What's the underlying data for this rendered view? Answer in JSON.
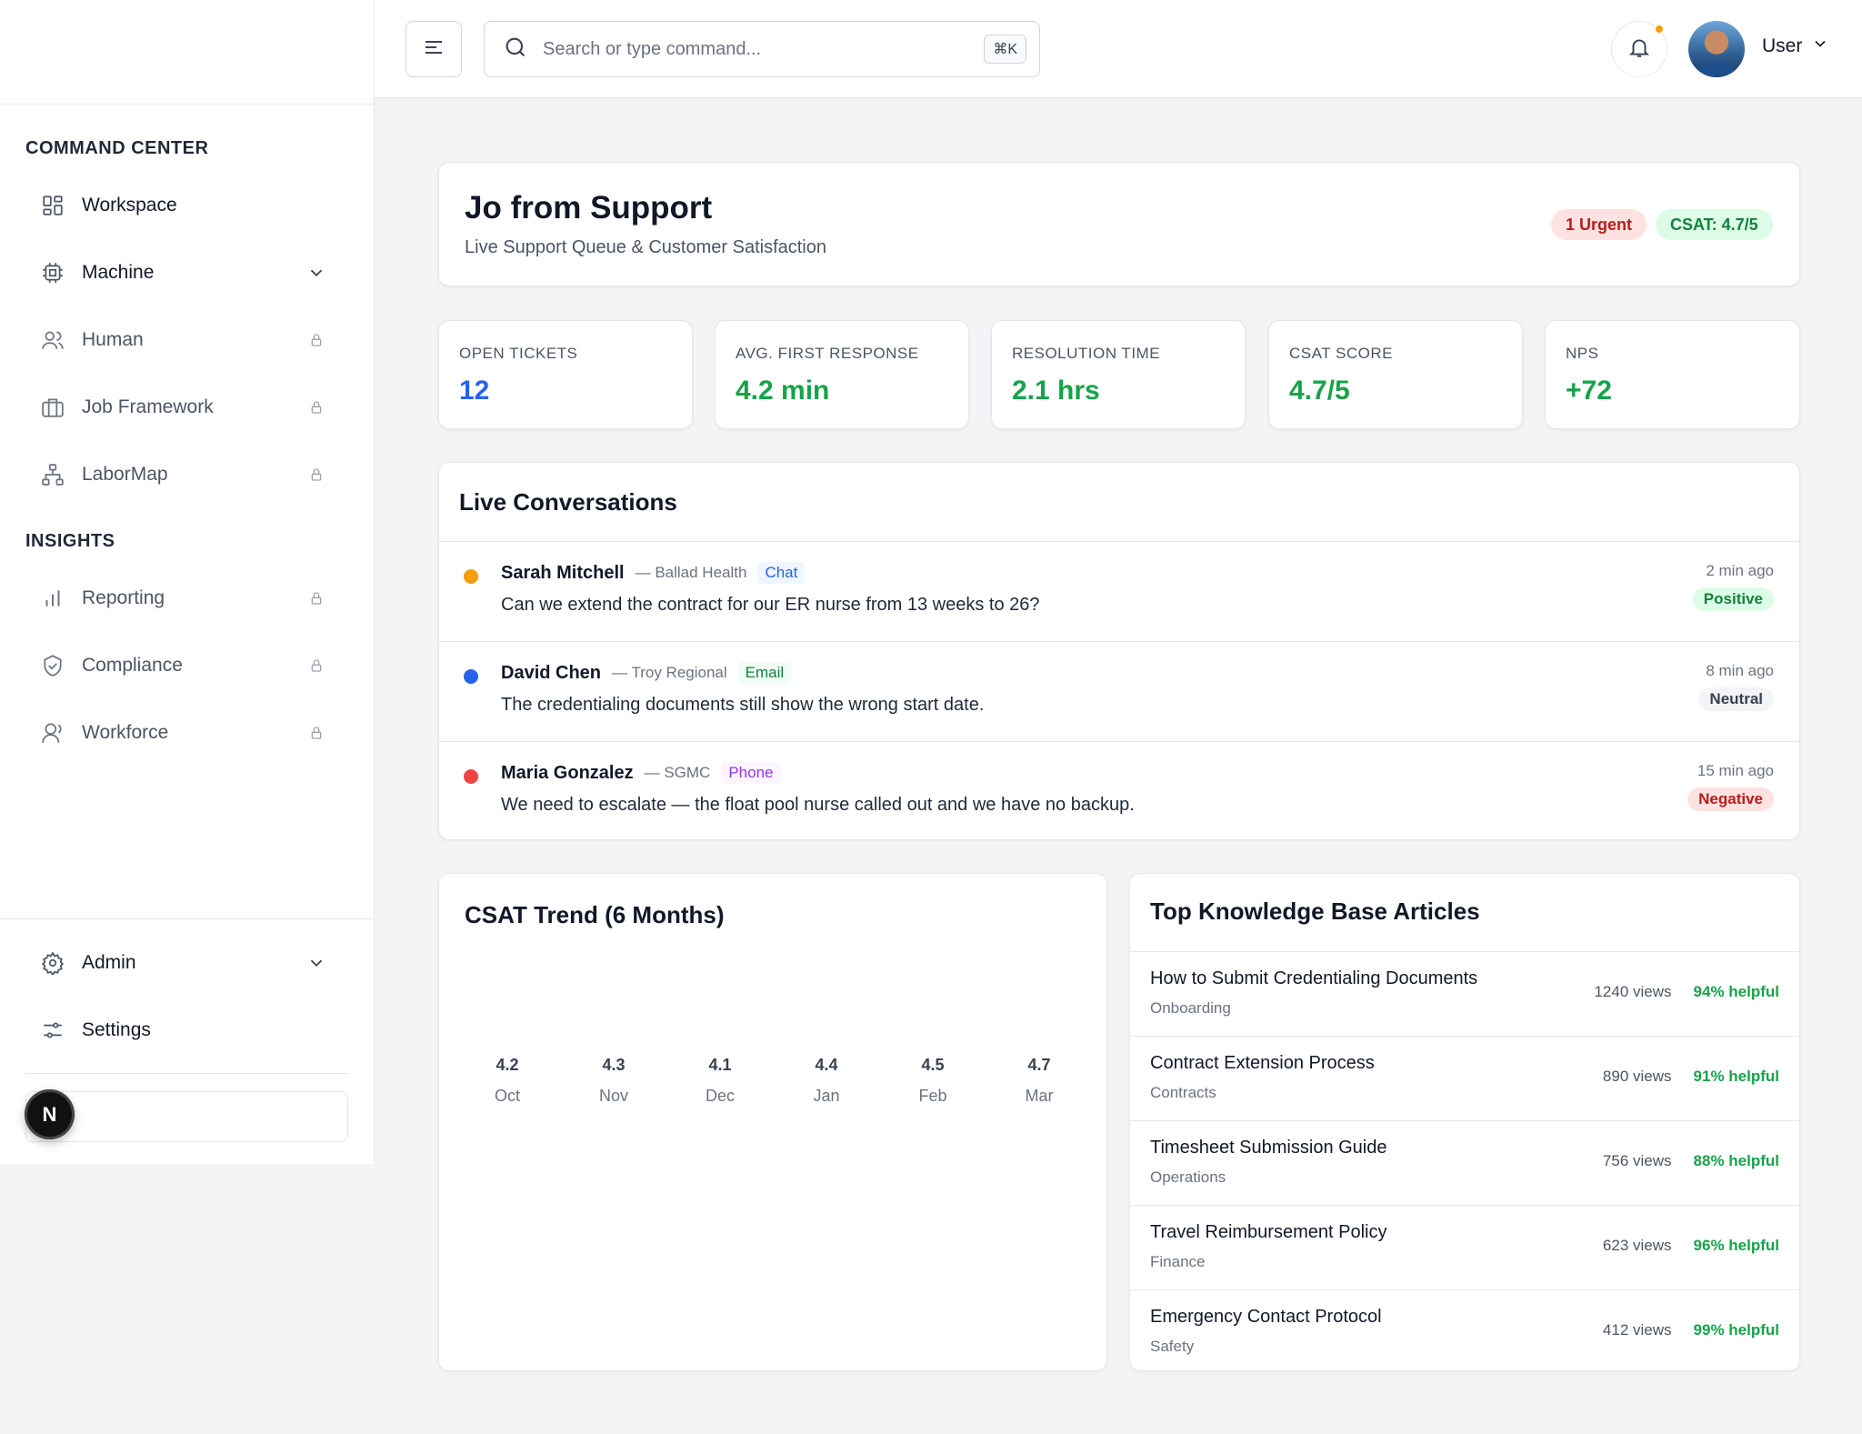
{
  "topbar": {
    "search_placeholder": "Search or type command...",
    "shortcut": "⌘K",
    "user_name": "User"
  },
  "sidebar": {
    "section_command": "COMMAND CENTER",
    "section_insights": "INSIGHTS",
    "items": [
      {
        "label": "Workspace",
        "icon": "grid-icon",
        "locked": false
      },
      {
        "label": "Machine",
        "icon": "cpu-icon",
        "locked": false,
        "expandable": true
      },
      {
        "label": "Human",
        "icon": "users-icon",
        "locked": true
      },
      {
        "label": "Job Framework",
        "icon": "briefcase-icon",
        "locked": true
      },
      {
        "label": "LaborMap",
        "icon": "hierarchy-icon",
        "locked": true
      },
      {
        "label": "Reporting",
        "icon": "bar-chart-icon",
        "locked": true
      },
      {
        "label": "Compliance",
        "icon": "shield-check-icon",
        "locked": true
      },
      {
        "label": "Workforce",
        "icon": "user-icon",
        "locked": true
      }
    ],
    "bottom_items": [
      {
        "label": "Admin",
        "icon": "gear-icon",
        "expandable": true
      },
      {
        "label": "Settings",
        "icon": "sliders-icon"
      }
    ],
    "n_badge": "N"
  },
  "hero": {
    "title": "Jo from Support",
    "subtitle": "Live Support Queue & Customer Satisfaction",
    "urgent_badge": "1 Urgent",
    "csat_badge": "CSAT: 4.7/5"
  },
  "kpis": [
    {
      "label": "OPEN TICKETS",
      "value": "12",
      "color": "#2563eb"
    },
    {
      "label": "AVG. FIRST RESPONSE",
      "value": "4.2 min",
      "color": "#16a34a"
    },
    {
      "label": "RESOLUTION TIME",
      "value": "2.1 hrs",
      "color": "#16a34a"
    },
    {
      "label": "CSAT SCORE",
      "value": "4.7/5",
      "color": "#16a34a"
    },
    {
      "label": "NPS",
      "value": "+72",
      "color": "#16a34a"
    }
  ],
  "live": {
    "title": "Live Conversations",
    "rows": [
      {
        "name": "Sarah Mitchell",
        "org": "— Ballad Health",
        "channel": "Chat",
        "message": "Can we extend the contract for our ER nurse from 13 weeks to 26?",
        "time": "2 min ago",
        "sentiment": "Positive",
        "dot": "#f59e0b"
      },
      {
        "name": "David Chen",
        "org": "— Troy Regional",
        "channel": "Email",
        "message": "The credentialing documents still show the wrong start date.",
        "time": "8 min ago",
        "sentiment": "Neutral",
        "dot": "#2563eb"
      },
      {
        "name": "Maria Gonzalez",
        "org": "— SGMC",
        "channel": "Phone",
        "message": "We need to escalate — the float pool nurse called out and we have no backup.",
        "time": "15 min ago",
        "sentiment": "Negative",
        "dot": "#ef4444"
      }
    ]
  },
  "csat": {
    "title": "CSAT Trend (6 Months)"
  },
  "chart_data": {
    "type": "bar",
    "title": "CSAT Trend (6 Months)",
    "categories": [
      "Oct",
      "Nov",
      "Dec",
      "Jan",
      "Feb",
      "Mar"
    ],
    "values": [
      4.2,
      4.3,
      4.1,
      4.4,
      4.5,
      4.7
    ],
    "value_labels": [
      "4.2",
      "4.3",
      "4.1",
      "4.4",
      "4.5",
      "4.7"
    ]
  },
  "kb": {
    "title": "Top Knowledge Base Articles",
    "rows": [
      {
        "name": "How to Submit Credentialing Documents",
        "category": "Onboarding",
        "views": "1240 views",
        "helpful": "94% helpful"
      },
      {
        "name": "Contract Extension Process",
        "category": "Contracts",
        "views": "890 views",
        "helpful": "91% helpful"
      },
      {
        "name": "Timesheet Submission Guide",
        "category": "Operations",
        "views": "756 views",
        "helpful": "88% helpful"
      },
      {
        "name": "Travel Reimbursement Policy",
        "category": "Finance",
        "views": "623 views",
        "helpful": "96% helpful"
      },
      {
        "name": "Emergency Contact Protocol",
        "category": "Safety",
        "views": "412 views",
        "helpful": "99% helpful"
      }
    ]
  }
}
